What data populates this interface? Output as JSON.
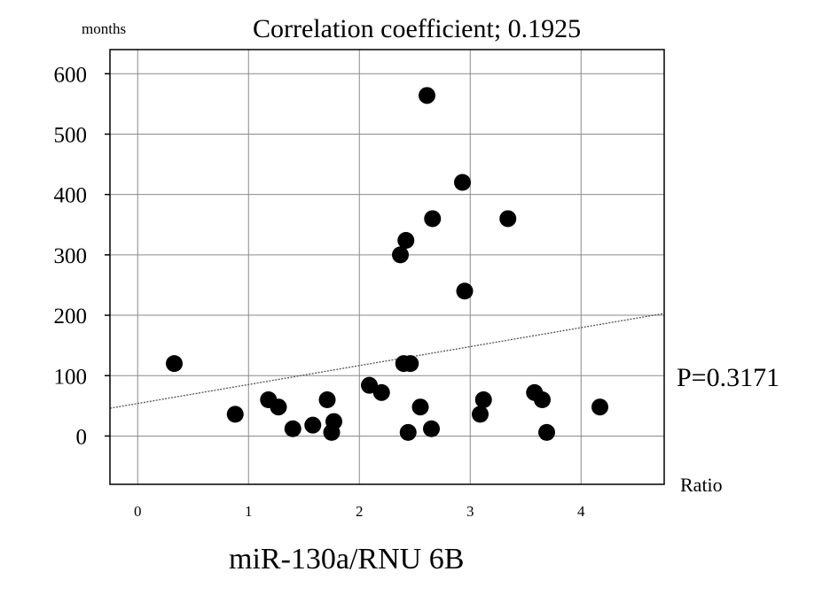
{
  "chart_data": {
    "type": "scatter",
    "title": "Correlation coefficient; 0.1925",
    "ylabel": "months",
    "xlabel": "Ratio",
    "caption": "miR-130a/RNU 6B",
    "annotation": "P=0.3171",
    "xlim": [
      -0.25,
      4.75
    ],
    "ylim": [
      -80,
      640
    ],
    "x_ticks": [
      0,
      1,
      2,
      3,
      4
    ],
    "x_tick_labels": [
      "0",
      "1",
      "2",
      "3",
      "4"
    ],
    "y_ticks": [
      0,
      100,
      200,
      300,
      400,
      500,
      600
    ],
    "y_tick_labels": [
      "0",
      "100",
      "200",
      "300",
      "400",
      "500",
      "600"
    ],
    "grid": true,
    "series": [
      {
        "marker": "filled-circle",
        "color": "#000000",
        "points": [
          {
            "x": 0.33,
            "y": 120
          },
          {
            "x": 0.88,
            "y": 36
          },
          {
            "x": 1.18,
            "y": 60
          },
          {
            "x": 1.27,
            "y": 48
          },
          {
            "x": 1.4,
            "y": 12
          },
          {
            "x": 1.58,
            "y": 18
          },
          {
            "x": 1.71,
            "y": 60
          },
          {
            "x": 1.75,
            "y": 6
          },
          {
            "x": 1.77,
            "y": 24
          },
          {
            "x": 2.09,
            "y": 84
          },
          {
            "x": 2.2,
            "y": 72
          },
          {
            "x": 2.37,
            "y": 300
          },
          {
            "x": 2.4,
            "y": 120
          },
          {
            "x": 2.42,
            "y": 324
          },
          {
            "x": 2.44,
            "y": 6
          },
          {
            "x": 2.46,
            "y": 120
          },
          {
            "x": 2.55,
            "y": 48
          },
          {
            "x": 2.61,
            "y": 564
          },
          {
            "x": 2.65,
            "y": 12
          },
          {
            "x": 2.66,
            "y": 360
          },
          {
            "x": 2.93,
            "y": 420
          },
          {
            "x": 2.95,
            "y": 240
          },
          {
            "x": 3.09,
            "y": 36
          },
          {
            "x": 3.12,
            "y": 60
          },
          {
            "x": 3.34,
            "y": 360
          },
          {
            "x": 3.58,
            "y": 72
          },
          {
            "x": 3.65,
            "y": 60
          },
          {
            "x": 3.69,
            "y": 6
          },
          {
            "x": 4.17,
            "y": 48
          }
        ]
      }
    ],
    "regression_line": {
      "style": "dotted",
      "color": "#555555",
      "points": [
        [
          -0.25,
          46
        ],
        [
          4.75,
          203
        ]
      ]
    }
  }
}
